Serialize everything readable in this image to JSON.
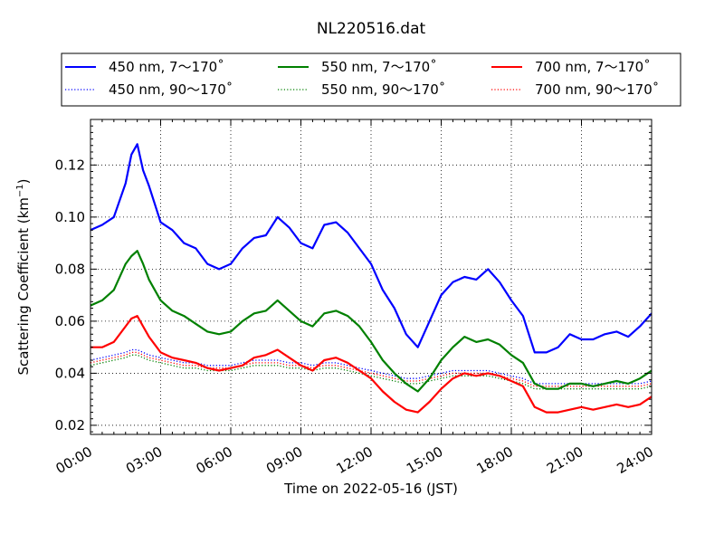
{
  "chart_data": {
    "type": "line",
    "title": "NL220516.dat",
    "xlabel": "Time on 2022-05-16 (JST)",
    "ylabel": "Scattering Coefficient (km",
    "ylabel_exponent": "−1",
    "ylabel_suffix": ")",
    "xlim": [
      0,
      24
    ],
    "ylim": [
      0.0165,
      0.1375
    ],
    "x_ticks": [
      0,
      3,
      6,
      9,
      12,
      15,
      18,
      21,
      24
    ],
    "x_tick_labels": [
      "00:00",
      "03:00",
      "06:00",
      "09:00",
      "12:00",
      "15:00",
      "18:00",
      "21:00",
      "24:00"
    ],
    "y_ticks": [
      0.02,
      0.04,
      0.06,
      0.08,
      0.1,
      0.12
    ],
    "y_tick_labels": [
      "0.02",
      "0.04",
      "0.06",
      "0.08",
      "0.10",
      "0.12"
    ],
    "grid": true,
    "legend_position": "top-outside",
    "x_unit": "hours since 00:00",
    "x": [
      0,
      0.5,
      1,
      1.5,
      1.75,
      2,
      2.25,
      2.5,
      3,
      3.5,
      4,
      4.5,
      5,
      5.5,
      6,
      6.5,
      7,
      7.5,
      8,
      8.5,
      9,
      9.5,
      10,
      10.5,
      11,
      11.5,
      12,
      12.5,
      13,
      13.5,
      14,
      14.5,
      15,
      15.5,
      16,
      16.5,
      17,
      17.5,
      18,
      18.5,
      19,
      19.5,
      20,
      20.5,
      21,
      21.5,
      22,
      22.5,
      23,
      23.5,
      24
    ],
    "series": [
      {
        "name": "450 nm, 7～170˚",
        "color": "#0000ff",
        "style": "solid",
        "values": [
          0.095,
          0.097,
          0.1,
          0.113,
          0.124,
          0.128,
          0.118,
          0.112,
          0.098,
          0.095,
          0.09,
          0.088,
          0.082,
          0.08,
          0.082,
          0.088,
          0.092,
          0.093,
          0.1,
          0.096,
          0.09,
          0.088,
          0.097,
          0.098,
          0.094,
          0.088,
          0.082,
          0.072,
          0.065,
          0.055,
          0.05,
          0.06,
          0.07,
          0.075,
          0.077,
          0.076,
          0.08,
          0.075,
          0.068,
          0.062,
          0.048,
          0.048,
          0.05,
          0.055,
          0.053,
          0.053,
          0.055,
          0.056,
          0.054,
          0.058,
          0.063
        ]
      },
      {
        "name": "450 nm, 90～170˚",
        "color": "#0000ff",
        "style": "dotted",
        "values": [
          0.045,
          0.046,
          0.047,
          0.048,
          0.049,
          0.049,
          0.048,
          0.047,
          0.046,
          0.045,
          0.044,
          0.044,
          0.043,
          0.043,
          0.043,
          0.044,
          0.045,
          0.045,
          0.045,
          0.044,
          0.044,
          0.043,
          0.044,
          0.044,
          0.043,
          0.042,
          0.041,
          0.04,
          0.039,
          0.038,
          0.038,
          0.039,
          0.04,
          0.041,
          0.041,
          0.041,
          0.041,
          0.04,
          0.039,
          0.038,
          0.036,
          0.036,
          0.036,
          0.036,
          0.036,
          0.036,
          0.036,
          0.036,
          0.036,
          0.036,
          0.037
        ]
      },
      {
        "name": "550 nm, 7～170˚",
        "color": "#008000",
        "style": "solid",
        "values": [
          0.066,
          0.068,
          0.072,
          0.082,
          0.085,
          0.087,
          0.082,
          0.076,
          0.068,
          0.064,
          0.062,
          0.059,
          0.056,
          0.055,
          0.056,
          0.06,
          0.063,
          0.064,
          0.068,
          0.064,
          0.06,
          0.058,
          0.063,
          0.064,
          0.062,
          0.058,
          0.052,
          0.045,
          0.04,
          0.036,
          0.033,
          0.038,
          0.045,
          0.05,
          0.054,
          0.052,
          0.053,
          0.051,
          0.047,
          0.044,
          0.036,
          0.034,
          0.034,
          0.036,
          0.036,
          0.035,
          0.036,
          0.037,
          0.036,
          0.038,
          0.041
        ]
      },
      {
        "name": "550 nm, 90～170˚",
        "color": "#008000",
        "style": "dotted",
        "values": [
          0.043,
          0.044,
          0.045,
          0.046,
          0.047,
          0.047,
          0.046,
          0.045,
          0.044,
          0.043,
          0.042,
          0.042,
          0.041,
          0.041,
          0.041,
          0.042,
          0.043,
          0.043,
          0.043,
          0.042,
          0.042,
          0.041,
          0.042,
          0.042,
          0.041,
          0.04,
          0.039,
          0.038,
          0.037,
          0.036,
          0.036,
          0.037,
          0.038,
          0.039,
          0.039,
          0.039,
          0.039,
          0.038,
          0.037,
          0.036,
          0.034,
          0.034,
          0.034,
          0.034,
          0.034,
          0.034,
          0.034,
          0.034,
          0.034,
          0.034,
          0.035
        ]
      },
      {
        "name": "700 nm, 7～170˚",
        "color": "#ff0000",
        "style": "solid",
        "values": [
          0.05,
          0.05,
          0.052,
          0.058,
          0.061,
          0.062,
          0.058,
          0.054,
          0.048,
          0.046,
          0.045,
          0.044,
          0.042,
          0.041,
          0.042,
          0.043,
          0.046,
          0.047,
          0.049,
          0.046,
          0.043,
          0.041,
          0.045,
          0.046,
          0.044,
          0.041,
          0.038,
          0.033,
          0.029,
          0.026,
          0.025,
          0.029,
          0.034,
          0.038,
          0.04,
          0.039,
          0.04,
          0.039,
          0.037,
          0.035,
          0.027,
          0.025,
          0.025,
          0.026,
          0.027,
          0.026,
          0.027,
          0.028,
          0.027,
          0.028,
          0.031
        ]
      },
      {
        "name": "700 nm, 90～170˚",
        "color": "#ff0000",
        "style": "dotted",
        "values": [
          0.044,
          0.045,
          0.046,
          0.047,
          0.048,
          0.048,
          0.047,
          0.046,
          0.045,
          0.044,
          0.043,
          0.043,
          0.042,
          0.042,
          0.042,
          0.043,
          0.044,
          0.044,
          0.044,
          0.043,
          0.043,
          0.042,
          0.043,
          0.043,
          0.042,
          0.041,
          0.04,
          0.039,
          0.038,
          0.037,
          0.037,
          0.038,
          0.039,
          0.04,
          0.04,
          0.04,
          0.04,
          0.039,
          0.038,
          0.037,
          0.035,
          0.035,
          0.035,
          0.035,
          0.035,
          0.035,
          0.035,
          0.035,
          0.035,
          0.035,
          0.036
        ]
      }
    ]
  }
}
